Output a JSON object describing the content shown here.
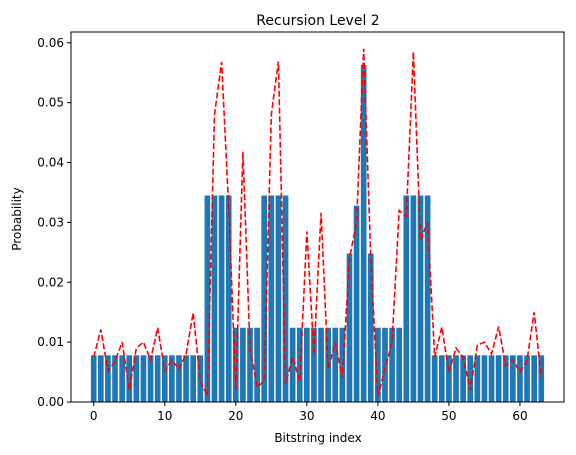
{
  "chart_data": {
    "type": "bar",
    "title": "Recursion Level 2",
    "xlabel": "Bitstring index",
    "ylabel": "Probability",
    "xlim": [
      -3.2,
      66.2
    ],
    "ylim": [
      0,
      0.0618
    ],
    "xticks": [
      0,
      10,
      20,
      30,
      40,
      50,
      60
    ],
    "yticks": [
      0.0,
      0.01,
      0.02,
      0.03,
      0.04,
      0.05,
      0.06
    ],
    "xtick_labels": [
      "0",
      "10",
      "20",
      "30",
      "40",
      "50",
      "60"
    ],
    "ytick_labels": [
      "0.00",
      "0.01",
      "0.02",
      "0.03",
      "0.04",
      "0.05",
      "0.06"
    ],
    "grid": false,
    "x": [
      0,
      1,
      2,
      3,
      4,
      5,
      6,
      7,
      8,
      9,
      10,
      11,
      12,
      13,
      14,
      15,
      16,
      17,
      18,
      19,
      20,
      21,
      22,
      23,
      24,
      25,
      26,
      27,
      28,
      29,
      30,
      31,
      32,
      33,
      34,
      35,
      36,
      37,
      38,
      39,
      40,
      41,
      42,
      43,
      44,
      45,
      46,
      47,
      48,
      49,
      50,
      51,
      52,
      53,
      54,
      55,
      56,
      57,
      58,
      59,
      60,
      61,
      62,
      63
    ],
    "series": [
      {
        "kind": "bar",
        "color": "#1f77b4",
        "values": [
          0.0078,
          0.0078,
          0.0078,
          0.0078,
          0.0078,
          0.0078,
          0.0078,
          0.0078,
          0.0078,
          0.0078,
          0.0078,
          0.0078,
          0.0078,
          0.0078,
          0.0078,
          0.0078,
          0.0345,
          0.0345,
          0.0345,
          0.0345,
          0.0124,
          0.0124,
          0.0124,
          0.0124,
          0.0345,
          0.0345,
          0.0345,
          0.0345,
          0.0124,
          0.0124,
          0.0124,
          0.0124,
          0.0124,
          0.0124,
          0.0124,
          0.0124,
          0.0248,
          0.0328,
          0.0563,
          0.0248,
          0.0124,
          0.0124,
          0.0124,
          0.0124,
          0.0345,
          0.0345,
          0.0345,
          0.0345,
          0.0078,
          0.0078,
          0.0078,
          0.0078,
          0.0078,
          0.0078,
          0.0078,
          0.0078,
          0.0078,
          0.0078,
          0.0078,
          0.0078,
          0.0078,
          0.0078,
          0.0078,
          0.0078
        ]
      },
      {
        "kind": "line",
        "style": "dashed",
        "color": "#ff0000",
        "values": [
          0.0075,
          0.0121,
          0.0052,
          0.0068,
          0.01,
          0.002,
          0.009,
          0.01,
          0.007,
          0.0124,
          0.0052,
          0.007,
          0.0055,
          0.008,
          0.0149,
          0.0035,
          0.001,
          0.048,
          0.0568,
          0.0325,
          0.002,
          0.0418,
          0.009,
          0.0025,
          0.0035,
          0.048,
          0.0569,
          0.003,
          0.0075,
          0.0035,
          0.0285,
          0.008,
          0.0316,
          0.0055,
          0.01,
          0.004,
          0.024,
          0.03,
          0.059,
          0.024,
          0.001,
          0.0055,
          0.01,
          0.032,
          0.031,
          0.0585,
          0.027,
          0.03,
          0.0075,
          0.0125,
          0.005,
          0.009,
          0.0075,
          0.002,
          0.0095,
          0.01,
          0.008,
          0.0126,
          0.006,
          0.007,
          0.005,
          0.007,
          0.015,
          0.004
        ]
      }
    ]
  }
}
